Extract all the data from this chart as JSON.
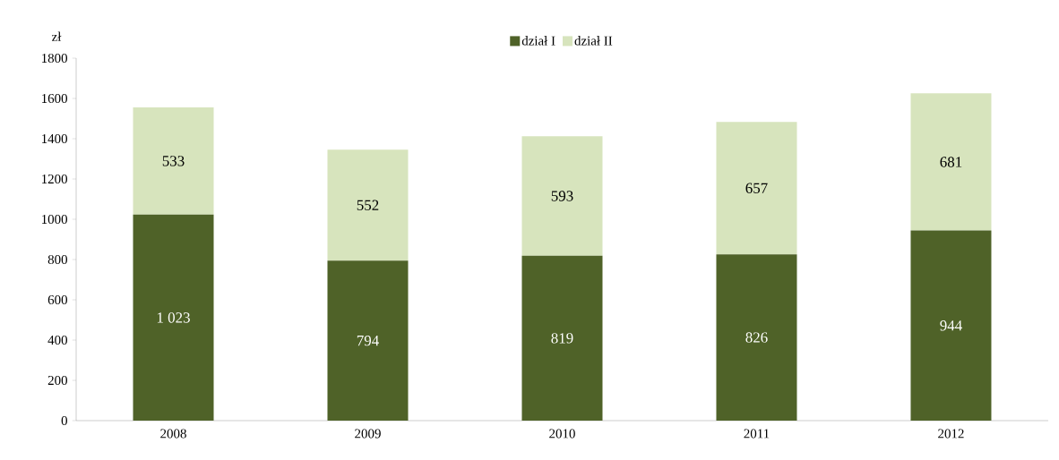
{
  "chart_data": {
    "type": "bar",
    "stacked": true,
    "ylabel": "zł",
    "categories": [
      "2008",
      "2009",
      "2010",
      "2011",
      "2012"
    ],
    "series": [
      {
        "name": "dział I",
        "color": "#4f6228",
        "values": [
          1023,
          794,
          819,
          826,
          944
        ],
        "value_labels": [
          "1 023",
          "794",
          "819",
          "826",
          "944"
        ]
      },
      {
        "name": "dział II",
        "color": "#d7e4bd",
        "values": [
          533,
          552,
          593,
          657,
          681
        ],
        "value_labels": [
          "533",
          "552",
          "593",
          "657",
          "681"
        ]
      }
    ],
    "ylim": [
      0,
      1800
    ],
    "yticks": [
      0,
      200,
      400,
      600,
      800,
      1000,
      1200,
      1400,
      1600,
      1800
    ],
    "legend": "top",
    "grid": false
  }
}
